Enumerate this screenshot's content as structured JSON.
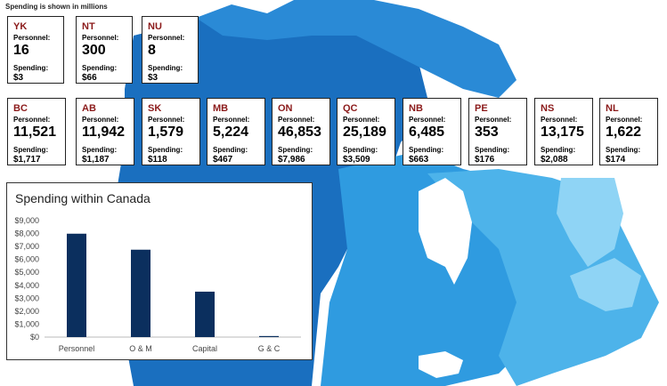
{
  "note": "Spending is shown in millions",
  "colors": {
    "map_dark": "#1a6fbf",
    "map_mid": "#2a8ad6",
    "map_light": "#4db3ea",
    "map_pale": "#8fd4f5",
    "bar": "#0b2f5e",
    "code": "#8b1a1a"
  },
  "labels": {
    "personnel": "Personnel:",
    "spending": "Spending:"
  },
  "provinces": [
    {
      "code": "YK",
      "personnel": "16",
      "spending": "$3"
    },
    {
      "code": "NT",
      "personnel": "300",
      "spending": "$66"
    },
    {
      "code": "NU",
      "personnel": "8",
      "spending": "$3"
    },
    {
      "code": "BC",
      "personnel": "11,521",
      "spending": "$1,717"
    },
    {
      "code": "AB",
      "personnel": "11,942",
      "spending": "$1,187"
    },
    {
      "code": "SK",
      "personnel": "1,579",
      "spending": "$118"
    },
    {
      "code": "MB",
      "personnel": "5,224",
      "spending": "$467"
    },
    {
      "code": "ON",
      "personnel": "46,853",
      "spending": "$7,986"
    },
    {
      "code": "QC",
      "personnel": "25,189",
      "spending": "$3,509"
    },
    {
      "code": "NB",
      "personnel": "6,485",
      "spending": "$663"
    },
    {
      "code": "PE",
      "personnel": "353",
      "spending": "$176"
    },
    {
      "code": "NS",
      "personnel": "13,175",
      "spending": "$2,088"
    },
    {
      "code": "NL",
      "personnel": "1,622",
      "spending": "$174"
    }
  ],
  "chart_data": {
    "type": "bar",
    "title": "Spending within Canada",
    "categories": [
      "Personnel",
      "O & M",
      "Capital",
      "G & C"
    ],
    "values": [
      7986,
      6750,
      3509,
      80
    ],
    "ylim": [
      0,
      9000
    ],
    "yticks": [
      0,
      1000,
      2000,
      3000,
      4000,
      5000,
      6000,
      7000,
      8000,
      9000
    ],
    "ytick_labels": [
      "$0",
      "$1,000",
      "$2,000",
      "$3,000",
      "$4,000",
      "$5,000",
      "$6,000",
      "$7,000",
      "$8,000",
      "$9,000"
    ],
    "xlabel": "",
    "ylabel": "",
    "grid": false,
    "legend": "none"
  }
}
